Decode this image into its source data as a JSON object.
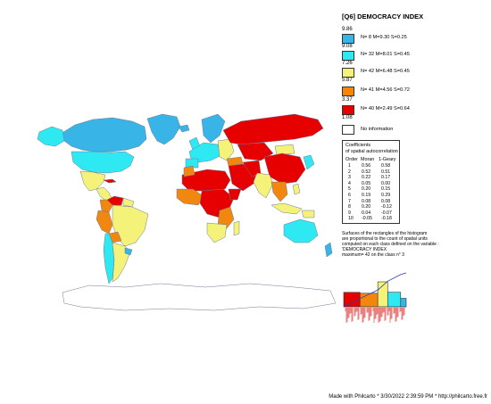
{
  "legend": {
    "title": "[Q6] DEMOCRACY INDEX",
    "breaks": [
      "9.86",
      "9.08",
      "7.26",
      "5.87",
      "3.37",
      "1.08"
    ],
    "classes": [
      {
        "color": "#39b4e6",
        "text": "N= 8  M=9.30  S=0.25"
      },
      {
        "color": "#2ee9f2",
        "text": "N= 32  M=8.01  S=0.45"
      },
      {
        "color": "#f5f27a",
        "text": "N= 42  M=6.48  S=0.45"
      },
      {
        "color": "#f2870f",
        "text": "N= 41  M=4.56  S=0.72"
      },
      {
        "color": "#e60000",
        "text": "N= 40  M=2.49  S=0.64"
      },
      {
        "color": "#ffffff",
        "text": "No information"
      }
    ]
  },
  "coefficients": {
    "header": [
      "Coefficients",
      "of spatial autocorrelation"
    ],
    "columns": [
      "Order",
      "Moran",
      "1-Geary"
    ],
    "rows": [
      [
        "1",
        "0.56",
        "0.58"
      ],
      [
        "2",
        "0.52",
        "0.51"
      ],
      [
        "3",
        "0.22",
        "0.17"
      ],
      [
        "4",
        "0.05",
        "0.00"
      ],
      [
        "5",
        "0.20",
        "0.15"
      ],
      [
        "6",
        "0.19",
        "0.29"
      ],
      [
        "7",
        "0.08",
        "0.08"
      ],
      [
        "8",
        "0.20",
        "-0.12"
      ],
      [
        "9",
        "0.04",
        "-0.07"
      ],
      [
        "10",
        "-0.05",
        "-0.18"
      ]
    ]
  },
  "histogram_note": [
    "Surfaces of the rectangles of the histogram",
    "are proportional to the count of spatial units",
    "computed on each class defined on the variable :",
    "'DEMOCRACY INDEX",
    "maximum= 42 on the class n° 3"
  ],
  "histogram": {
    "counts": [
      40,
      41,
      42,
      32,
      8
    ],
    "max": 42
  },
  "footer": "Made with Philcarto * 3/30/2022 2:39:59 PM * http://philcarto.free.fr"
}
